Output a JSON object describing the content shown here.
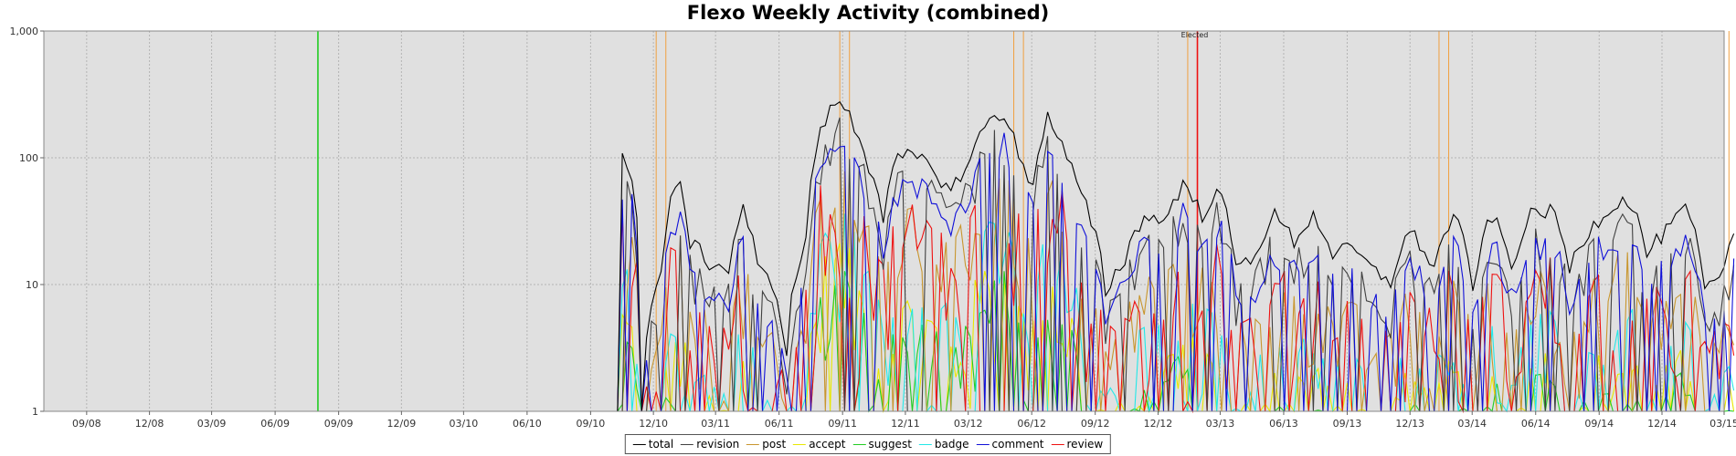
{
  "chart_data": {
    "type": "line",
    "title": "Flexo Weekly Activity (combined)",
    "y_scale": "log",
    "ylim": [
      1,
      1000
    ],
    "y_ticks": [
      {
        "value": 1,
        "label": "1"
      },
      {
        "value": 10,
        "label": "10"
      },
      {
        "value": 100,
        "label": "100"
      },
      {
        "value": 1000,
        "label": "1,000"
      }
    ],
    "xlim": [
      "2008-07",
      "2015-03"
    ],
    "x_ticks": [
      "09/08",
      "12/08",
      "03/09",
      "06/09",
      "09/09",
      "12/09",
      "03/10",
      "06/10",
      "09/10",
      "12/10",
      "03/11",
      "06/11",
      "09/11",
      "12/11",
      "03/12",
      "06/12",
      "09/12",
      "12/12",
      "03/13",
      "06/13",
      "09/13",
      "12/13",
      "03/14",
      "06/14",
      "09/14",
      "12/14",
      "03/15"
    ],
    "background": "#e0e0e0",
    "grid": true,
    "legend_position": "bottom-center",
    "series": [
      {
        "name": "total",
        "color": "#000000"
      },
      {
        "name": "revision",
        "color": "#404040"
      },
      {
        "name": "post",
        "color": "#c8962e"
      },
      {
        "name": "accept",
        "color": "#e8e800"
      },
      {
        "name": "suggest",
        "color": "#22cc22"
      },
      {
        "name": "badge",
        "color": "#22e8e8"
      },
      {
        "name": "comment",
        "color": "#1010d8"
      },
      {
        "name": "review",
        "color": "#ee1111"
      }
    ],
    "envelope": [
      {
        "x": "2010-10-17",
        "y": 110
      },
      {
        "x": "2010-10-31",
        "y": 85
      },
      {
        "x": "2010-11-14",
        "y": 1
      },
      {
        "x": "2010-12-12",
        "y": 14
      },
      {
        "x": "2010-12-26",
        "y": 50
      },
      {
        "x": "2011-01-09",
        "y": 70
      },
      {
        "x": "2011-01-23",
        "y": 25
      },
      {
        "x": "2011-02-20",
        "y": 17
      },
      {
        "x": "2011-03-20",
        "y": 15
      },
      {
        "x": "2011-04-10",
        "y": 45
      },
      {
        "x": "2011-05-01",
        "y": 15
      },
      {
        "x": "2011-05-22",
        "y": 12
      },
      {
        "x": "2011-06-12",
        "y": 3
      },
      {
        "x": "2011-07-10",
        "y": 25
      },
      {
        "x": "2011-08-07",
        "y": 230
      },
      {
        "x": "2011-08-28",
        "y": 330
      },
      {
        "x": "2011-09-18",
        "y": 200
      },
      {
        "x": "2011-10-09",
        "y": 100
      },
      {
        "x": "2011-10-30",
        "y": 40
      },
      {
        "x": "2011-11-20",
        "y": 110
      },
      {
        "x": "2011-12-11",
        "y": 120
      },
      {
        "x": "2012-01-08",
        "y": 95
      },
      {
        "x": "2012-02-05",
        "y": 60
      },
      {
        "x": "2012-03-04",
        "y": 110
      },
      {
        "x": "2012-04-01",
        "y": 230
      },
      {
        "x": "2012-04-22",
        "y": 260
      },
      {
        "x": "2012-05-13",
        "y": 110
      },
      {
        "x": "2012-06-03",
        "y": 70
      },
      {
        "x": "2012-06-24",
        "y": 240
      },
      {
        "x": "2012-07-15",
        "y": 140
      },
      {
        "x": "2012-08-05",
        "y": 70
      },
      {
        "x": "2012-08-26",
        "y": 35
      },
      {
        "x": "2012-09-16",
        "y": 10
      },
      {
        "x": "2012-10-14",
        "y": 18
      },
      {
        "x": "2012-11-11",
        "y": 40
      },
      {
        "x": "2012-12-09",
        "y": 35
      },
      {
        "x": "2013-01-06",
        "y": 70
      },
      {
        "x": "2013-02-03",
        "y": 40
      },
      {
        "x": "2013-02-24",
        "y": 65
      },
      {
        "x": "2013-03-24",
        "y": 15
      },
      {
        "x": "2013-04-21",
        "y": 20
      },
      {
        "x": "2013-05-19",
        "y": 40
      },
      {
        "x": "2013-06-16",
        "y": 25
      },
      {
        "x": "2013-07-14",
        "y": 40
      },
      {
        "x": "2013-08-11",
        "y": 20
      },
      {
        "x": "2013-09-08",
        "y": 22
      },
      {
        "x": "2013-10-06",
        "y": 15
      },
      {
        "x": "2013-11-03",
        "y": 12
      },
      {
        "x": "2013-12-01",
        "y": 30
      },
      {
        "x": "2014-01-05",
        "y": 15
      },
      {
        "x": "2014-02-02",
        "y": 40
      },
      {
        "x": "2014-03-02",
        "y": 10
      },
      {
        "x": "2014-03-30",
        "y": 40
      },
      {
        "x": "2014-04-27",
        "y": 15
      },
      {
        "x": "2014-05-25",
        "y": 40
      },
      {
        "x": "2014-06-22",
        "y": 45
      },
      {
        "x": "2014-07-20",
        "y": 15
      },
      {
        "x": "2014-08-17",
        "y": 30
      },
      {
        "x": "2014-09-14",
        "y": 45
      },
      {
        "x": "2014-10-12",
        "y": 55
      },
      {
        "x": "2014-11-09",
        "y": 20
      },
      {
        "x": "2014-12-07",
        "y": 30
      },
      {
        "x": "2015-01-04",
        "y": 45
      },
      {
        "x": "2015-02-01",
        "y": 10
      },
      {
        "x": "2015-02-22",
        "y": 12
      },
      {
        "x": "2015-03-15",
        "y": 28
      }
    ],
    "annotations": [
      {
        "label": "Elected",
        "x": "2013-01-27",
        "color": "#ee1111"
      },
      {
        "label": "",
        "x": "2009-08-02",
        "color": "#22cc22"
      },
      {
        "label": "",
        "x": "2010-12-05",
        "color": "#f0a040"
      },
      {
        "label": "",
        "x": "2010-12-19",
        "color": "#f0a040"
      },
      {
        "label": "",
        "x": "2011-08-28",
        "color": "#f0a040"
      },
      {
        "label": "",
        "x": "2011-09-11",
        "color": "#f0a040"
      },
      {
        "label": "",
        "x": "2012-05-06",
        "color": "#f0a040"
      },
      {
        "label": "",
        "x": "2012-05-20",
        "color": "#f0a040"
      },
      {
        "label": "",
        "x": "2013-01-13",
        "color": "#f0a040"
      },
      {
        "label": "",
        "x": "2014-01-12",
        "color": "#f0a040"
      },
      {
        "label": "",
        "x": "2014-01-26",
        "color": "#f0a040"
      },
      {
        "label": "",
        "x": "2015-03-08",
        "color": "#f0a040"
      }
    ]
  }
}
